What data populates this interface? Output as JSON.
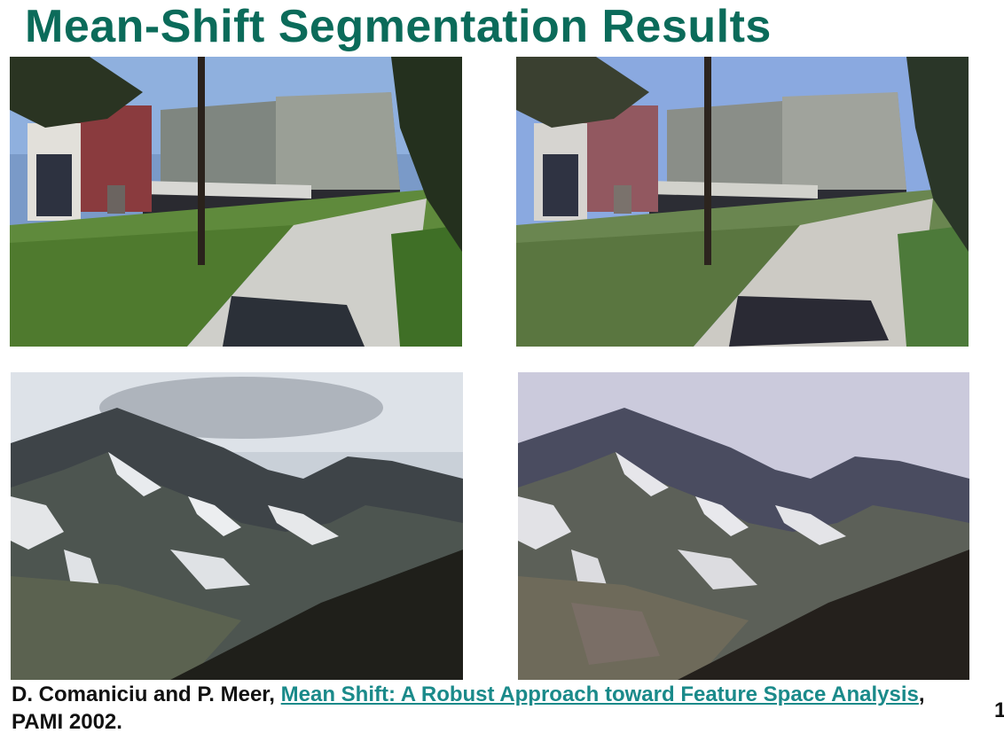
{
  "slide": {
    "title": "Mean-Shift Segmentation Results",
    "citation": {
      "authors": "D. Comaniciu and P. Meer, ",
      "link_text": "Mean Shift: A Robust Approach toward Feature Space Analysis",
      "suffix": ", PAMI 2002."
    },
    "page_number": "1"
  },
  "images": {
    "campus_original": {
      "subject": "campus-building-photo",
      "variant": "original"
    },
    "campus_segmented": {
      "subject": "campus-building-photo",
      "variant": "segmented"
    },
    "mountain_original": {
      "subject": "mountain-photo",
      "variant": "original"
    },
    "mountain_segmented": {
      "subject": "mountain-photo",
      "variant": "segmented"
    }
  },
  "colors": {
    "title": "#0b6b5a",
    "link": "#1a8a8a"
  }
}
